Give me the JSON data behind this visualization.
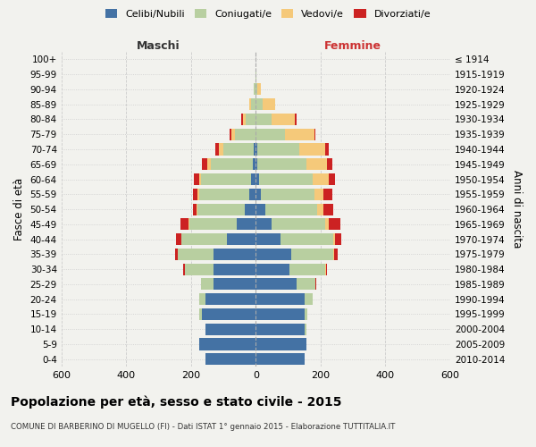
{
  "age_groups": [
    "0-4",
    "5-9",
    "10-14",
    "15-19",
    "20-24",
    "25-29",
    "30-34",
    "35-39",
    "40-44",
    "45-49",
    "50-54",
    "55-59",
    "60-64",
    "65-69",
    "70-74",
    "75-79",
    "80-84",
    "85-89",
    "90-94",
    "95-99",
    "100+"
  ],
  "birth_years": [
    "2010-2014",
    "2005-2009",
    "2000-2004",
    "1995-1999",
    "1990-1994",
    "1985-1989",
    "1980-1984",
    "1975-1979",
    "1970-1974",
    "1965-1969",
    "1960-1964",
    "1955-1959",
    "1950-1954",
    "1945-1949",
    "1940-1944",
    "1935-1939",
    "1930-1934",
    "1925-1929",
    "1920-1924",
    "1915-1919",
    "≤ 1914"
  ],
  "males": {
    "celibi": [
      155,
      175,
      155,
      165,
      155,
      130,
      130,
      130,
      90,
      60,
      35,
      20,
      15,
      10,
      5,
      0,
      0,
      0,
      0,
      0,
      0
    ],
    "coniugati": [
      0,
      0,
      0,
      10,
      20,
      40,
      90,
      110,
      140,
      145,
      145,
      155,
      155,
      130,
      95,
      65,
      30,
      15,
      5,
      2,
      1
    ],
    "vedovi": [
      0,
      0,
      0,
      0,
      0,
      0,
      0,
      0,
      1,
      2,
      3,
      5,
      5,
      10,
      15,
      10,
      10,
      5,
      2,
      0,
      0
    ],
    "divorziati": [
      0,
      0,
      0,
      0,
      0,
      0,
      5,
      10,
      15,
      25,
      10,
      15,
      15,
      15,
      10,
      5,
      5,
      0,
      0,
      0,
      0
    ]
  },
  "females": {
    "nubili": [
      150,
      155,
      150,
      150,
      150,
      125,
      105,
      110,
      75,
      50,
      30,
      15,
      10,
      5,
      5,
      0,
      0,
      0,
      0,
      0,
      0
    ],
    "coniugate": [
      0,
      0,
      5,
      10,
      25,
      60,
      110,
      130,
      165,
      165,
      160,
      165,
      165,
      150,
      130,
      90,
      50,
      20,
      5,
      2,
      0
    ],
    "vedove": [
      0,
      0,
      0,
      0,
      0,
      0,
      1,
      2,
      5,
      10,
      20,
      30,
      50,
      65,
      80,
      90,
      70,
      40,
      10,
      1,
      0
    ],
    "divorziate": [
      0,
      0,
      0,
      0,
      0,
      3,
      5,
      10,
      20,
      35,
      30,
      25,
      20,
      15,
      10,
      5,
      5,
      0,
      0,
      0,
      0
    ]
  },
  "color_celibi": "#4472a4",
  "color_coniugati": "#b8cfa0",
  "color_vedovi": "#f5c97a",
  "color_divorziati": "#cc2222",
  "bg_color": "#f2f2ee",
  "title": "Popolazione per età, sesso e stato civile - 2015",
  "subtitle": "COMUNE DI BARBERINO DI MUGELLO (FI) - Dati ISTAT 1° gennaio 2015 - Elaborazione TUTTITALIA.IT",
  "xlabel_left": "Maschi",
  "xlabel_right": "Femmine",
  "ylabel_left": "Fasce di età",
  "ylabel_right": "Anni di nascita",
  "xlim": 600,
  "xticks": [
    -600,
    -400,
    -200,
    0,
    200,
    400,
    600
  ]
}
